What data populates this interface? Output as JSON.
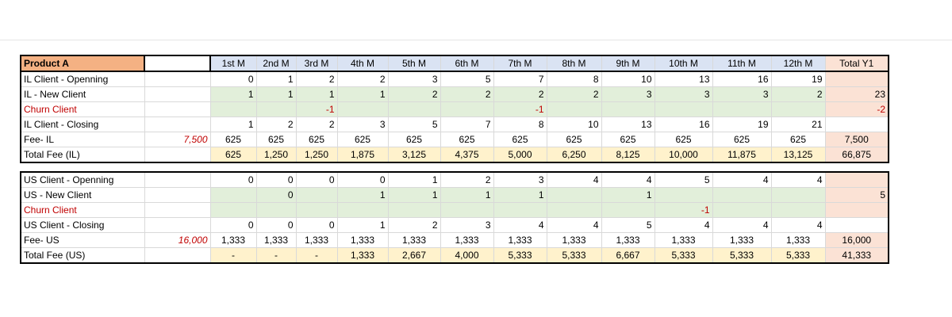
{
  "header": {
    "product": "Product A",
    "months": [
      "1st M",
      "2nd M",
      "3rd M",
      "4th M",
      "5th M",
      "6th M",
      "7th M",
      "8th M",
      "9th M",
      "10th M",
      "11th M",
      "12th M"
    ],
    "total": "Total Y1"
  },
  "il": {
    "opening": {
      "label": "IL Client  - Openning",
      "vals": [
        "0",
        "1",
        "2",
        "2",
        "3",
        "5",
        "7",
        "8",
        "10",
        "13",
        "16",
        "19"
      ],
      "total": ""
    },
    "new": {
      "label": "IL - New Client",
      "vals": [
        "1",
        "1",
        "1",
        "1",
        "2",
        "2",
        "2",
        "2",
        "3",
        "3",
        "3",
        "2"
      ],
      "total": "23"
    },
    "churn": {
      "label": "Churn Client",
      "vals": [
        "",
        "",
        "-1",
        "",
        "",
        "",
        "-1",
        "",
        "",
        "",
        "",
        ""
      ],
      "total": "-2"
    },
    "closing": {
      "label": "IL Client - Closing",
      "vals": [
        "1",
        "2",
        "2",
        "3",
        "5",
        "7",
        "8",
        "10",
        "13",
        "16",
        "19",
        "21"
      ],
      "total": ""
    },
    "fee": {
      "label": "Fee- IL",
      "price": "7,500",
      "vals": [
        "625",
        "625",
        "625",
        "625",
        "625",
        "625",
        "625",
        "625",
        "625",
        "625",
        "625",
        "625"
      ],
      "total": "7,500"
    },
    "totalfee": {
      "label": "Total Fee (IL)",
      "vals": [
        "625",
        "1,250",
        "1,250",
        "1,875",
        "3,125",
        "4,375",
        "5,000",
        "6,250",
        "8,125",
        "10,000",
        "11,875",
        "13,125"
      ],
      "total": "66,875"
    }
  },
  "us": {
    "opening": {
      "label": "US Client  - Openning",
      "vals": [
        "0",
        "0",
        "0",
        "0",
        "1",
        "2",
        "3",
        "4",
        "4",
        "5",
        "4",
        "4"
      ],
      "total": ""
    },
    "new": {
      "label": "US - New Client",
      "vals": [
        "",
        "0",
        "",
        "1",
        "1",
        "1",
        "1",
        "",
        "1",
        "",
        "",
        ""
      ],
      "total": "5"
    },
    "churn": {
      "label": "Churn Client",
      "vals": [
        "",
        "",
        "",
        "",
        "",
        "",
        "",
        "",
        "",
        "-1",
        "",
        ""
      ],
      "total": ""
    },
    "closing": {
      "label": "US Client - Closing",
      "vals": [
        "0",
        "0",
        "0",
        "1",
        "2",
        "3",
        "4",
        "4",
        "5",
        "4",
        "4",
        "4"
      ],
      "total": ""
    },
    "fee": {
      "label": "Fee- US",
      "price": "16,000",
      "vals": [
        "1,333",
        "1,333",
        "1,333",
        "1,333",
        "1,333",
        "1,333",
        "1,333",
        "1,333",
        "1,333",
        "1,333",
        "1,333",
        "1,333"
      ],
      "total": "16,000"
    },
    "totalfee": {
      "label": "Total Fee (US)",
      "vals": [
        "-",
        "-",
        "-",
        "1,333",
        "2,667",
        "4,000",
        "5,333",
        "5,333",
        "6,667",
        "5,333",
        "5,333",
        "5,333"
      ],
      "total": "41,333"
    }
  },
  "colors": {
    "header_product": "#f4b183",
    "header_month": "#dae3f3",
    "input_green": "#e2efda",
    "total_yellow": "#fff2cc",
    "total_col_pink": "#fbe2d5",
    "churn_red": "#c00000"
  }
}
